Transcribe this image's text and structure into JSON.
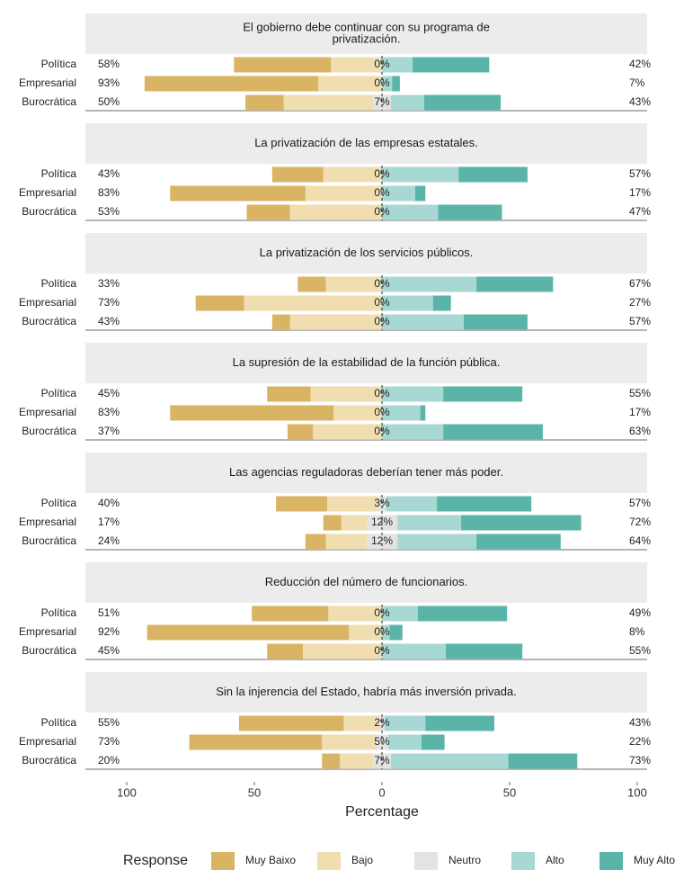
{
  "chart_data": {
    "type": "likert",
    "xlabel": "Percentage",
    "xlim": [
      -100,
      100
    ],
    "xticks": [
      {
        "value": -100,
        "label": "100"
      },
      {
        "value": -50,
        "label": "50"
      },
      0,
      50,
      100
    ],
    "legend": {
      "title": "Response",
      "position": "bottom"
    },
    "series": [
      {
        "name": "Muy Baixo",
        "color": "#d9b464"
      },
      {
        "name": "Bajo",
        "color": "#f0ddb0"
      },
      {
        "name": "Neutro",
        "color": "#e3e3e3"
      },
      {
        "name": "Alto",
        "color": "#a8d8d4"
      },
      {
        "name": "Muy Alto",
        "color": "#5ab4a8"
      }
    ],
    "panels": [
      {
        "title": [
          "El gobierno debe continuar con su programa de",
          "privatización."
        ],
        "categories": [
          "Política",
          "Empresarial",
          "Burocrática"
        ],
        "values": [
          [
            38,
            68,
            15
          ],
          [
            20,
            25,
            35
          ],
          [
            0,
            0,
            7
          ],
          [
            12,
            4,
            13
          ],
          [
            30,
            3,
            30
          ]
        ],
        "neutral_labels": [
          "0%",
          "0%",
          "7%"
        ],
        "low": {
          "values": [
            58,
            93,
            50
          ],
          "value_labels": [
            "58%",
            "93%",
            "50%"
          ]
        },
        "high": {
          "values": [
            42,
            7,
            43
          ],
          "value_labels": [
            "42%",
            "7%",
            "43%"
          ]
        }
      },
      {
        "title": [
          "La privatización de las empresas estatales."
        ],
        "categories": [
          "Política",
          "Empresarial",
          "Burocrática"
        ],
        "values": [
          [
            20,
            53,
            17
          ],
          [
            23,
            30,
            36
          ],
          [
            0,
            0,
            0
          ],
          [
            30,
            13,
            22
          ],
          [
            27,
            4,
            25
          ]
        ],
        "neutral_labels": [
          "0%",
          "0%",
          "0%"
        ],
        "low": {
          "values": [
            43,
            83,
            53
          ],
          "value_labels": [
            "43%",
            "83%",
            "53%"
          ]
        },
        "high": {
          "values": [
            57,
            17,
            47
          ],
          "value_labels": [
            "57%",
            "17%",
            "47%"
          ]
        }
      },
      {
        "title": [
          "La privatización de los servicios públicos."
        ],
        "categories": [
          "Política",
          "Empresarial",
          "Burocrática"
        ],
        "values": [
          [
            11,
            19,
            7
          ],
          [
            22,
            54,
            36
          ],
          [
            0,
            0,
            0
          ],
          [
            37,
            20,
            32
          ],
          [
            30,
            7,
            25
          ]
        ],
        "neutral_labels": [
          "0%",
          "0%",
          "0%"
        ],
        "low": {
          "values": [
            33,
            73,
            43
          ],
          "value_labels": [
            "33%",
            "73%",
            "43%"
          ]
        },
        "high": {
          "values": [
            67,
            27,
            57
          ],
          "value_labels": [
            "67%",
            "27%",
            "57%"
          ]
        }
      },
      {
        "title": [
          "La supresión de la estabilidad de la función pública."
        ],
        "categories": [
          "Política",
          "Empresarial",
          "Burocrática"
        ],
        "values": [
          [
            17,
            64,
            10
          ],
          [
            28,
            19,
            27
          ],
          [
            0,
            0,
            0
          ],
          [
            24,
            15,
            24
          ],
          [
            31,
            2,
            39
          ]
        ],
        "neutral_labels": [
          "0%",
          "0%",
          "0%"
        ],
        "low": {
          "values": [
            45,
            83,
            37
          ],
          "value_labels": [
            "45%",
            "83%",
            "37%"
          ]
        },
        "high": {
          "values": [
            55,
            17,
            63
          ],
          "value_labels": [
            "55%",
            "17%",
            "63%"
          ]
        }
      },
      {
        "title": [
          "Las agencias reguladoras deberían tener más poder."
        ],
        "categories": [
          "Política",
          "Empresarial",
          "Burocrática"
        ],
        "values": [
          [
            20,
            7,
            8
          ],
          [
            20,
            10,
            16
          ],
          [
            3,
            12,
            12
          ],
          [
            20,
            25,
            31
          ],
          [
            37,
            47,
            33
          ]
        ],
        "neutral_labels": [
          "3%",
          "12%",
          "12%"
        ],
        "low": {
          "values": [
            40,
            17,
            24
          ],
          "value_labels": [
            "40%",
            "17%",
            "24%"
          ]
        },
        "high": {
          "values": [
            57,
            72,
            64
          ],
          "value_labels": [
            "57%",
            "72%",
            "64%"
          ]
        }
      },
      {
        "title": [
          "Reducción del número de funcionarios."
        ],
        "categories": [
          "Política",
          "Empresarial",
          "Burocrática"
        ],
        "values": [
          [
            30,
            79,
            14
          ],
          [
            21,
            13,
            31
          ],
          [
            0,
            0,
            0
          ],
          [
            14,
            3,
            25
          ],
          [
            35,
            5,
            30
          ]
        ],
        "neutral_labels": [
          "0%",
          "0%",
          "0%"
        ],
        "low": {
          "values": [
            51,
            92,
            45
          ],
          "value_labels": [
            "51%",
            "92%",
            "45%"
          ]
        },
        "high": {
          "values": [
            49,
            8,
            55
          ],
          "value_labels": [
            "49%",
            "8%",
            "55%"
          ]
        }
      },
      {
        "title": [
          "Sin la injerencia del Estado, habría más inversión privada."
        ],
        "categories": [
          "Política",
          "Empresarial",
          "Burocrática"
        ],
        "values": [
          [
            41,
            52,
            7
          ],
          [
            14,
            21,
            13
          ],
          [
            2,
            5,
            7
          ],
          [
            16,
            13,
            46
          ],
          [
            27,
            9,
            27
          ]
        ],
        "neutral_labels": [
          "2%",
          "5%",
          "7%"
        ],
        "low": {
          "values": [
            55,
            73,
            20
          ],
          "value_labels": [
            "55%",
            "73%",
            "20%"
          ]
        },
        "high": {
          "values": [
            43,
            22,
            73
          ],
          "value_labels": [
            "43%",
            "22%",
            "73%"
          ]
        }
      }
    ]
  }
}
